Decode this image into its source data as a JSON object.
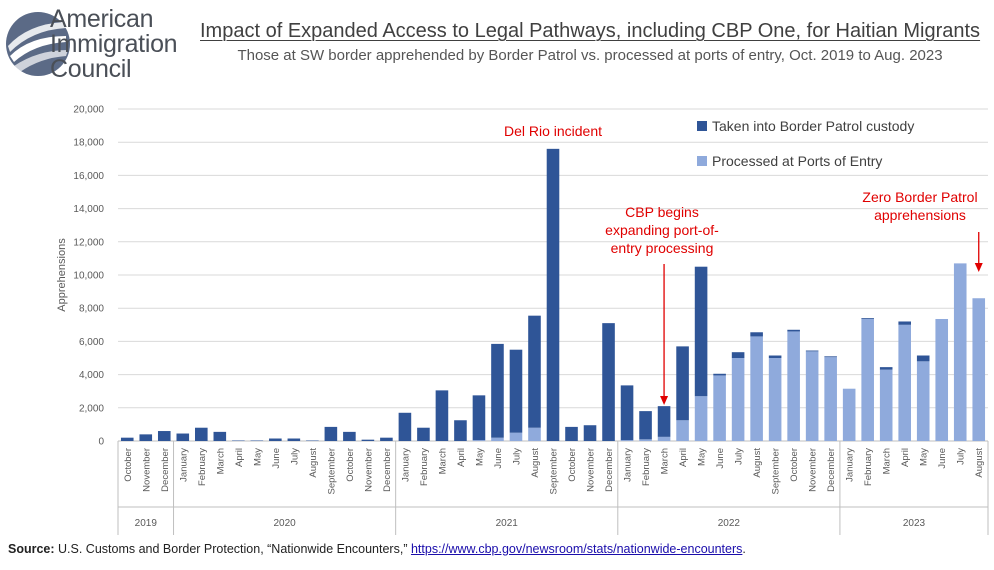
{
  "logo": {
    "line1": "American",
    "line2": "Immigration",
    "line3": "Council"
  },
  "header": {
    "title": "Impact of Expanded Access to Legal Pathways, including CBP One, for Haitian Migrants",
    "subtitle": "Those at SW border apprehended by Border Patrol vs. processed at ports of entry, Oct. 2019 to Aug. 2023"
  },
  "source": {
    "label": "Source:",
    "text": " U.S. Customs and Border Protection, “Nationwide Encounters,” ",
    "link": "https://www.cbp.gov/newsroom/stats/nationwide-encounters",
    "end": "."
  },
  "colors": {
    "border_patrol": "#2f5597",
    "ports_of_entry": "#8faadc",
    "annotation": "#e00000",
    "logo": "#4a4f57"
  },
  "chart_data": {
    "type": "bar",
    "stacked": true,
    "ylabel": "Apprehensions",
    "ylim": [
      0,
      20000
    ],
    "yticks": [
      "0",
      "2,000",
      "4,000",
      "6,000",
      "8,000",
      "10,000",
      "12,000",
      "14,000",
      "16,000",
      "18,000",
      "20,000"
    ],
    "grid": true,
    "legend_position": "top-right",
    "categories": [
      "October",
      "November",
      "December",
      "January",
      "February",
      "March",
      "April",
      "May",
      "June",
      "July",
      "August",
      "September",
      "October",
      "November",
      "December",
      "January",
      "February",
      "March",
      "April",
      "May",
      "June",
      "July",
      "August",
      "September",
      "October",
      "November",
      "December",
      "January",
      "February",
      "March",
      "April",
      "May",
      "June",
      "July",
      "August",
      "September",
      "October",
      "November",
      "December",
      "January",
      "February",
      "March",
      "April",
      "May",
      "June",
      "July",
      "August"
    ],
    "years": [
      {
        "label": "2019",
        "count": 3
      },
      {
        "label": "2020",
        "count": 12
      },
      {
        "label": "2021",
        "count": 12
      },
      {
        "label": "2022",
        "count": 12
      },
      {
        "label": "2023",
        "count": 8
      }
    ],
    "series": [
      {
        "name": "Processed at Ports of Entry",
        "values": [
          0,
          0,
          0,
          0,
          0,
          0,
          0,
          0,
          0,
          0,
          0,
          0,
          0,
          0,
          0,
          0,
          0,
          0,
          0,
          50,
          200,
          500,
          800,
          0,
          0,
          0,
          0,
          50,
          100,
          250,
          1250,
          2700,
          3950,
          5000,
          6300,
          5000,
          6600,
          5400,
          5050,
          3150,
          7350,
          4300,
          7000,
          4800,
          7350,
          10700,
          8600
        ]
      },
      {
        "name": "Taken into Border Patrol custody",
        "values": [
          200,
          400,
          600,
          450,
          800,
          550,
          30,
          30,
          150,
          150,
          30,
          850,
          550,
          80,
          200,
          1700,
          800,
          3050,
          1250,
          2700,
          5650,
          5000,
          6750,
          17600,
          850,
          950,
          7100,
          3300,
          1700,
          1850,
          4450,
          7800,
          100,
          350,
          250,
          150,
          100,
          50,
          50,
          0,
          50,
          150,
          200,
          350,
          0,
          0,
          0
        ]
      }
    ],
    "annotations": [
      {
        "text": "Del Rio incident",
        "category_index": 23
      },
      {
        "text": "CBP begins expanding port-of-entry processing",
        "lines": [
          "CBP begins",
          "expanding port-of-",
          "entry processing"
        ],
        "category_index": 29
      },
      {
        "text": "Zero Border Patrol apprehensions",
        "lines": [
          "Zero Border Patrol",
          "apprehensions"
        ],
        "category_index": 46
      }
    ]
  }
}
